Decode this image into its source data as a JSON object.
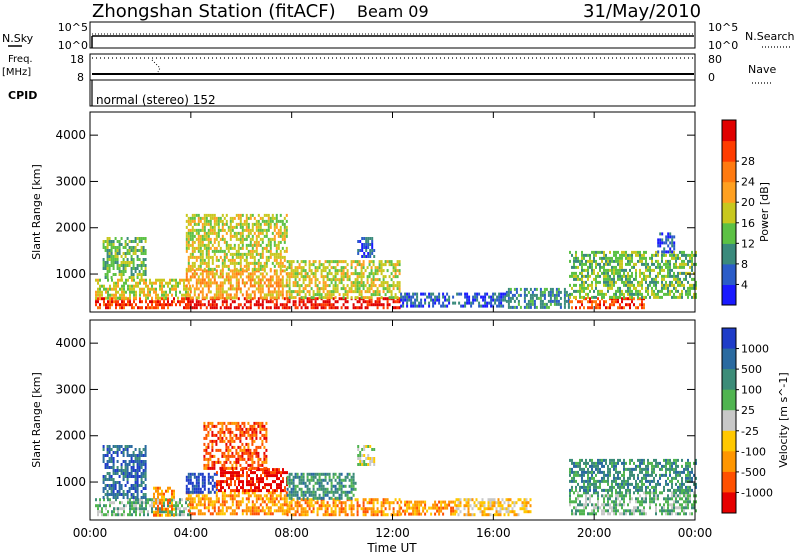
{
  "header": {
    "station": "Zhongshan Station (fitACF)",
    "beam": "Beam 09",
    "date": "31/May/2010"
  },
  "status_panels": {
    "nsky_label": "N.Sky",
    "nsearch_label": "N.Search",
    "freq_label": "Freq.",
    "freq_unit": "[MHz]",
    "nave_label": "Nave",
    "cpid_label": "CPID",
    "cpid_text": "normal (stereo) 152",
    "noise_ticks": [
      "10^5",
      "10^0"
    ],
    "freq_ticks": [
      "18",
      "8"
    ],
    "nave_ticks": [
      "80",
      "0"
    ]
  },
  "chart_data": [
    {
      "type": "heatmap",
      "name": "power",
      "title": "",
      "xlabel": "",
      "ylabel": "Slant Range [km]",
      "xlim": [
        0,
        24
      ],
      "ylim": [
        180,
        4500
      ],
      "x_ticks": [
        "00:00",
        "04:00",
        "08:00",
        "12:00",
        "16:00",
        "20:00",
        "00:00"
      ],
      "y_ticks": [
        "1000",
        "2000",
        "3000",
        "4000"
      ],
      "colorbar": {
        "label": "Power [dB]",
        "ticks": [
          "4",
          "8",
          "12",
          "16",
          "20",
          "24",
          "28"
        ],
        "colors": [
          "#1a1aff",
          "#2b5cc8",
          "#3a8a7c",
          "#5cc144",
          "#c8c81e",
          "#ffa020",
          "#ff7a10",
          "#ff3c00",
          "#e00000"
        ]
      },
      "regions": [
        {
          "t": [
            0.2,
            4.0
          ],
          "r": [
            300,
            500
          ],
          "level": 7
        },
        {
          "t": [
            0.2,
            4.0
          ],
          "r": [
            500,
            900
          ],
          "level": 4
        },
        {
          "t": [
            0.5,
            2.2
          ],
          "r": [
            900,
            1800
          ],
          "level": 3
        },
        {
          "t": [
            3.8,
            7.8
          ],
          "r": [
            300,
            500
          ],
          "level": 8
        },
        {
          "t": [
            3.8,
            7.8
          ],
          "r": [
            500,
            1100
          ],
          "level": 5
        },
        {
          "t": [
            3.8,
            7.8
          ],
          "r": [
            1100,
            2300
          ],
          "level": 4
        },
        {
          "t": [
            7.8,
            12.3
          ],
          "r": [
            300,
            500
          ],
          "level": 8
        },
        {
          "t": [
            7.8,
            12.3
          ],
          "r": [
            500,
            1300
          ],
          "level": 4
        },
        {
          "t": [
            10.6,
            11.3
          ],
          "r": [
            1400,
            1800
          ],
          "level": 1
        },
        {
          "t": [
            12.3,
            16.5
          ],
          "r": [
            300,
            600
          ],
          "level": 1
        },
        {
          "t": [
            16.5,
            19.0
          ],
          "r": [
            300,
            700
          ],
          "level": 2
        },
        {
          "t": [
            19.0,
            22.0
          ],
          "r": [
            300,
            500
          ],
          "level": 7
        },
        {
          "t": [
            19.0,
            24.0
          ],
          "r": [
            500,
            1500
          ],
          "level": 3
        },
        {
          "t": [
            22.5,
            23.2
          ],
          "r": [
            1500,
            1900
          ],
          "level": 1
        }
      ]
    },
    {
      "type": "heatmap",
      "name": "velocity",
      "title": "",
      "xlabel": "Time UT",
      "ylabel": "Slant Range [km]",
      "xlim": [
        0,
        24
      ],
      "ylim": [
        180,
        4500
      ],
      "x_ticks": [
        "00:00",
        "04:00",
        "08:00",
        "12:00",
        "16:00",
        "20:00",
        "00:00"
      ],
      "y_ticks": [
        "1000",
        "2000",
        "3000",
        "4000"
      ],
      "colorbar": {
        "label": "Velocity [m s^-1]",
        "ticks": [
          "1000",
          "500",
          "100",
          "25",
          "-25",
          "-100",
          "-500",
          "-1000"
        ],
        "colors": [
          "#1e3cc8",
          "#2a6aa0",
          "#3c8c78",
          "#50b450",
          "#c8c8c8",
          "#ffc800",
          "#ff9600",
          "#ff5000",
          "#e60000"
        ]
      },
      "regions": [
        {
          "t": [
            0.2,
            4.0
          ],
          "r": [
            300,
            650
          ],
          "level": 3
        },
        {
          "t": [
            2.5,
            3.3
          ],
          "r": [
            300,
            900
          ],
          "level": 6
        },
        {
          "t": [
            0.5,
            2.2
          ],
          "r": [
            650,
            1800
          ],
          "level": 1
        },
        {
          "t": [
            3.8,
            7.8
          ],
          "r": [
            300,
            800
          ],
          "level": 6
        },
        {
          "t": [
            3.8,
            5.0
          ],
          "r": [
            800,
            1200
          ],
          "level": 0
        },
        {
          "t": [
            5.0,
            7.8
          ],
          "r": [
            800,
            1300
          ],
          "level": 8
        },
        {
          "t": [
            4.5,
            7.0
          ],
          "r": [
            1300,
            2300
          ],
          "level": 7
        },
        {
          "t": [
            7.8,
            12.3
          ],
          "r": [
            300,
            650
          ],
          "level": 6
        },
        {
          "t": [
            7.8,
            10.5
          ],
          "r": [
            650,
            1200
          ],
          "level": 2
        },
        {
          "t": [
            10.6,
            11.3
          ],
          "r": [
            1400,
            1800
          ],
          "level": 4
        },
        {
          "t": [
            12.3,
            14.5
          ],
          "r": [
            300,
            600
          ],
          "level": 6
        },
        {
          "t": [
            14.5,
            17.5
          ],
          "r": [
            300,
            650
          ],
          "level": 5
        },
        {
          "t": [
            19.0,
            24.0
          ],
          "r": [
            300,
            800
          ],
          "level": 3
        },
        {
          "t": [
            19.0,
            24.0
          ],
          "r": [
            800,
            1500
          ],
          "level": 2
        }
      ]
    }
  ]
}
